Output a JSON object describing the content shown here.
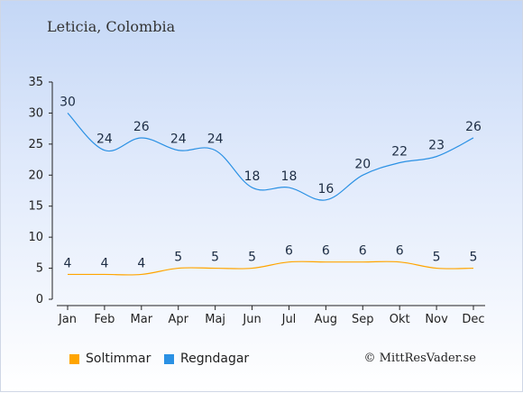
{
  "location": "Leticia, Colombia",
  "copyright": "© MittResVader.se",
  "colors": {
    "sun": "#ffa500",
    "rain": "#2b91e4"
  },
  "chart_data": {
    "type": "line",
    "categories": [
      "Jan",
      "Feb",
      "Mar",
      "Apr",
      "Maj",
      "Jun",
      "Jul",
      "Aug",
      "Sep",
      "Okt",
      "Nov",
      "Dec"
    ],
    "ylim": [
      0,
      35
    ],
    "yticks": [
      0,
      5,
      10,
      15,
      20,
      25,
      30,
      35
    ],
    "legend_position": "bottom",
    "grid": false,
    "series": [
      {
        "name": "Soltimmar",
        "color": "#ffa500",
        "values": [
          4,
          4,
          4,
          5,
          5,
          5,
          6,
          6,
          6,
          6,
          5,
          5
        ]
      },
      {
        "name": "Regndagar",
        "color": "#2b91e4",
        "values": [
          30,
          24,
          26,
          24,
          24,
          18,
          18,
          16,
          20,
          22,
          23,
          26
        ]
      }
    ]
  }
}
